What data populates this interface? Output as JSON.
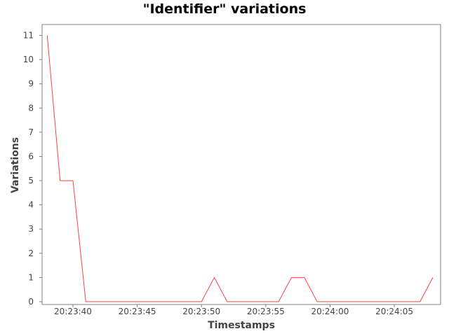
{
  "chart_data": {
    "type": "line",
    "title": "\"Identifier\" variations",
    "xlabel": "Timestamps",
    "ylabel": "Variations",
    "x_ticks": [
      "20:23:40",
      "20:23:45",
      "20:23:50",
      "20:23:55",
      "20:24:00",
      "20:24:05"
    ],
    "x_tick_seconds": [
      40,
      45,
      50,
      55,
      60,
      65
    ],
    "y_ticks": [
      0,
      1,
      2,
      3,
      4,
      5,
      6,
      7,
      8,
      9,
      10,
      11
    ],
    "xlim_seconds": [
      37.6,
      68.6
    ],
    "ylim": [
      0,
      11.45
    ],
    "grid": false,
    "legend": "none",
    "series": [
      {
        "color": "#ff4040",
        "points": [
          {
            "t": "20:23:38",
            "v": 11
          },
          {
            "t": "20:23:39",
            "v": 5
          },
          {
            "t": "20:23:40",
            "v": 5
          },
          {
            "t": "20:23:41",
            "v": 0
          },
          {
            "t": "20:23:42",
            "v": 0
          },
          {
            "t": "20:23:43",
            "v": 0
          },
          {
            "t": "20:23:44",
            "v": 0
          },
          {
            "t": "20:23:45",
            "v": 0
          },
          {
            "t": "20:23:46",
            "v": 0
          },
          {
            "t": "20:23:47",
            "v": 0
          },
          {
            "t": "20:23:48",
            "v": 0
          },
          {
            "t": "20:23:49",
            "v": 0
          },
          {
            "t": "20:23:50",
            "v": 0
          },
          {
            "t": "20:23:51",
            "v": 1
          },
          {
            "t": "20:23:52",
            "v": 0
          },
          {
            "t": "20:23:53",
            "v": 0
          },
          {
            "t": "20:23:54",
            "v": 0
          },
          {
            "t": "20:23:55",
            "v": 0
          },
          {
            "t": "20:23:56",
            "v": 0
          },
          {
            "t": "20:23:57",
            "v": 1
          },
          {
            "t": "20:23:58",
            "v": 1
          },
          {
            "t": "20:23:59",
            "v": 0
          },
          {
            "t": "20:24:00",
            "v": 0
          },
          {
            "t": "20:24:01",
            "v": 0
          },
          {
            "t": "20:24:02",
            "v": 0
          },
          {
            "t": "20:24:03",
            "v": 0
          },
          {
            "t": "20:24:04",
            "v": 0
          },
          {
            "t": "20:24:05",
            "v": 0
          },
          {
            "t": "20:24:06",
            "v": 0
          },
          {
            "t": "20:24:07",
            "v": 0
          },
          {
            "t": "20:24:08",
            "v": 1
          }
        ]
      }
    ]
  }
}
